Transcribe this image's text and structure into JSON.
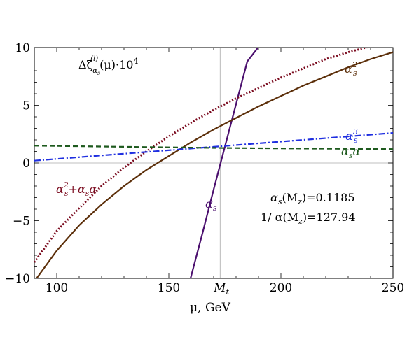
{
  "chart_data": {
    "type": "line",
    "title": "",
    "xlabel": "μ, GeV",
    "ylabel": "",
    "xlim": [
      90,
      250
    ],
    "ylim": [
      -10,
      10
    ],
    "x_ticks": [
      100,
      150,
      200,
      250
    ],
    "y_ticks": [
      -10,
      -5,
      0,
      5,
      10
    ],
    "extra_x_tick": {
      "label": "M",
      "sub": "t",
      "value": 172.9
    },
    "reference_line_x": 172.9,
    "reference_line_y": 0,
    "grid": false,
    "annotations": {
      "top_left": {
        "prefix": "Δζ",
        "sup": "(i)",
        "sub": "α",
        "subsub": "s",
        "suffix": "(μ)·10",
        "exp": "4"
      },
      "params_line1": {
        "alpha": "α",
        "sub": "s",
        "rest": "(M",
        "sub2": "z",
        "tail": ")=0.1185"
      },
      "params_line2": {
        "head": "1/ α(M",
        "sub2": "z",
        "tail": ")=127.94"
      }
    },
    "series": [
      {
        "name": "α_s",
        "color": "#4b0f6e",
        "style": "solid",
        "label_parts": {
          "base": "α",
          "sub": "s",
          "sup": ""
        },
        "x": [
          159.7,
          165.0,
          170.0,
          175.0,
          180.0,
          185.0,
          189.8
        ],
        "y": [
          -10.0,
          -6.1,
          -2.3,
          1.4,
          5.1,
          8.8,
          10.0
        ]
      },
      {
        "name": "α_s^2",
        "color": "#5c2f0a",
        "style": "solid",
        "label_parts": {
          "base": "α",
          "sub": "s",
          "sup": "2"
        },
        "x": [
          91,
          100,
          110,
          120,
          130,
          140,
          150,
          160,
          170,
          180,
          190,
          200,
          210,
          220,
          230,
          240,
          250
        ],
        "y": [
          -10.0,
          -7.6,
          -5.4,
          -3.6,
          -2.0,
          -0.6,
          0.6,
          1.8,
          2.9,
          3.9,
          4.9,
          5.8,
          6.7,
          7.5,
          8.3,
          9.0,
          9.6
        ]
      },
      {
        "name": "α_s^2+α_s α",
        "color": "#7a0a1e",
        "style": "dotted",
        "label_parts": {
          "base": "α",
          "sub": "s",
          "sup": "2",
          "tail": "+α",
          "tail_sub": "s",
          "tail_end": "α"
        },
        "x": [
          90,
          100,
          110,
          120,
          130,
          140,
          150,
          160,
          170,
          180,
          190,
          200,
          210,
          220,
          230,
          240
        ],
        "y": [
          -8.6,
          -5.9,
          -3.9,
          -2.0,
          -0.4,
          1.0,
          2.3,
          3.5,
          4.6,
          5.6,
          6.5,
          7.4,
          8.2,
          9.0,
          9.6,
          10.1
        ]
      },
      {
        "name": "α_s^3",
        "color": "#1f2fe0",
        "style": "dashdot",
        "label_parts": {
          "base": "α",
          "sub": "s",
          "sup": "3"
        },
        "x": [
          90,
          130,
          170,
          210,
          250
        ],
        "y": [
          0.2,
          0.8,
          1.4,
          2.0,
          2.6
        ]
      },
      {
        "name": "α_s α",
        "color": "#1e5a1e",
        "style": "dashed",
        "label_parts": {
          "base": "α",
          "sub": "s",
          "tail_end": "α"
        },
        "x": [
          90,
          130,
          170,
          210,
          250
        ],
        "y": [
          1.5,
          1.4,
          1.3,
          1.25,
          1.2
        ]
      }
    ]
  }
}
